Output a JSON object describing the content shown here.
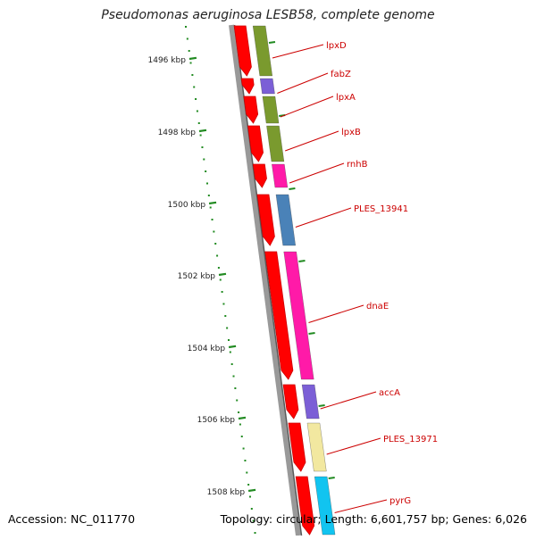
{
  "title": "Pseudomonas aeruginosa LESB58, complete genome",
  "footer": {
    "accession": "Accession: NC_011770",
    "summary": "Topology: circular; Length: 6,601,757 bp; Genes: 6,026"
  },
  "colors": {
    "cds_forward": "#ff0000",
    "cds_dark": "#cc0000",
    "backbone": "#7a7a7a",
    "tick": "#228b22",
    "label": "#cc0000"
  },
  "axis": {
    "tick_labels": [
      "1496 kbp",
      "1498 kbp",
      "1500 kbp",
      "1502 kbp",
      "1504 kbp",
      "1506 kbp",
      "1508 kbp"
    ]
  },
  "genes": [
    {
      "label": "lpxD",
      "cog_color": "#7a9a2e"
    },
    {
      "label": "fabZ",
      "cog_color": "#7b5fd6"
    },
    {
      "label": "lpxA",
      "cog_color": "#7a9a2e"
    },
    {
      "label": "lpxB",
      "cog_color": "#7a9a2e"
    },
    {
      "label": "rnhB",
      "cog_color": "#ff1aa8"
    },
    {
      "label": "PLES_13941",
      "cog_color": "#4a82b8"
    },
    {
      "label": "dnaE",
      "cog_color": "#ff1aa8"
    },
    {
      "label": "accA",
      "cog_color": "#7b5fd6"
    },
    {
      "label": "PLES_13971",
      "cog_color": "#f2e8a0"
    },
    {
      "label": "pyrG",
      "cog_color": "#11c4f0"
    }
  ]
}
